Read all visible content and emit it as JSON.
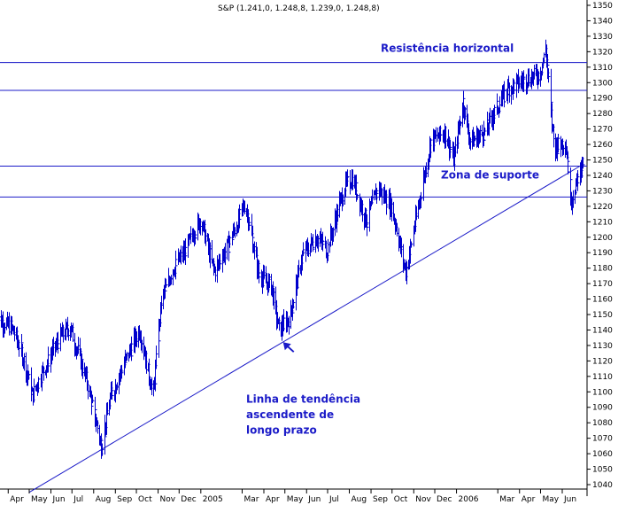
{
  "chart_data": {
    "type": "bar",
    "subtype": "ohlc",
    "title": "S&P (1.241,0, 1.248,8, 1.239,0, 1.248,8)",
    "ylim": [
      1035,
      1355
    ],
    "y_ticks": [
      1040,
      1050,
      1060,
      1070,
      1080,
      1090,
      1100,
      1110,
      1120,
      1130,
      1140,
      1150,
      1160,
      1170,
      1180,
      1190,
      1200,
      1210,
      1220,
      1230,
      1240,
      1250,
      1260,
      1270,
      1280,
      1290,
      1300,
      1310,
      1320,
      1330,
      1340,
      1350
    ],
    "x_tick_labels": [
      "Apr",
      "May",
      "Jun",
      "Jul",
      "Aug",
      "Sep",
      "Oct",
      "Nov",
      "Dec",
      "2005",
      "Mar",
      "Apr",
      "May",
      "Jun",
      "Jul",
      "Aug",
      "Sep",
      "Oct",
      "Nov",
      "Dec",
      "2006",
      "Mar",
      "Apr",
      "May",
      "Jun"
    ],
    "x_ticks": [
      "2004-04",
      "2004-05",
      "2004-06",
      "2004-07",
      "2004-08",
      "2004-09",
      "2004-10",
      "2004-11",
      "2004-12",
      "2005-01",
      "2005-03",
      "2005-04",
      "2005-05",
      "2005-06",
      "2005-07",
      "2005-08",
      "2005-09",
      "2005-10",
      "2005-11",
      "2005-12",
      "2006-01",
      "2006-03",
      "2006-04",
      "2006-05",
      "2006-06"
    ],
    "grid": false,
    "colors": {
      "bars": "#0000cc",
      "lines": "#1b1bc8",
      "annotations": "#1b1bc8"
    },
    "horizontal_lines": [
      1313,
      1295,
      1246,
      1226
    ],
    "trendline": {
      "from": {
        "x": "2004-05-01",
        "y": 1035
      },
      "to": {
        "x": "2006-06-30",
        "y": 1247
      }
    },
    "annotations": [
      {
        "text": "Resistência horizontal",
        "y": 1320
      },
      {
        "text": "Zona de suporte",
        "y": 1238
      },
      {
        "text": "Linha de tendência",
        "y": 1093
      },
      {
        "text": "ascendente de",
        "y": 1083
      },
      {
        "text": "longo prazo",
        "y": 1073
      }
    ],
    "arrow": {
      "x": "2005-05-01",
      "y": 1131
    },
    "anchors": [
      {
        "x": "2004-03-15",
        "y": 1148
      },
      {
        "x": "2004-04-05",
        "y": 1142
      },
      {
        "x": "2004-04-20",
        "y": 1126
      },
      {
        "x": "2004-05-05",
        "y": 1098
      },
      {
        "x": "2004-05-25",
        "y": 1118
      },
      {
        "x": "2004-06-15",
        "y": 1136
      },
      {
        "x": "2004-06-28",
        "y": 1142
      },
      {
        "x": "2004-07-20",
        "y": 1110
      },
      {
        "x": "2004-08-12",
        "y": 1065
      },
      {
        "x": "2004-08-25",
        "y": 1098
      },
      {
        "x": "2004-09-15",
        "y": 1120
      },
      {
        "x": "2004-10-05",
        "y": 1140
      },
      {
        "x": "2004-10-25",
        "y": 1098
      },
      {
        "x": "2004-11-05",
        "y": 1158
      },
      {
        "x": "2004-11-20",
        "y": 1178
      },
      {
        "x": "2004-12-10",
        "y": 1192
      },
      {
        "x": "2004-12-31",
        "y": 1212
      },
      {
        "x": "2005-01-20",
        "y": 1178
      },
      {
        "x": "2005-02-10",
        "y": 1196
      },
      {
        "x": "2005-03-05",
        "y": 1222
      },
      {
        "x": "2005-03-25",
        "y": 1175
      },
      {
        "x": "2005-04-12",
        "y": 1168
      },
      {
        "x": "2005-04-22",
        "y": 1140
      },
      {
        "x": "2005-05-08",
        "y": 1148
      },
      {
        "x": "2005-05-25",
        "y": 1188
      },
      {
        "x": "2005-06-15",
        "y": 1200
      },
      {
        "x": "2005-06-30",
        "y": 1192
      },
      {
        "x": "2005-07-25",
        "y": 1233
      },
      {
        "x": "2005-08-05",
        "y": 1238
      },
      {
        "x": "2005-08-25",
        "y": 1210
      },
      {
        "x": "2005-09-10",
        "y": 1232
      },
      {
        "x": "2005-09-30",
        "y": 1220
      },
      {
        "x": "2005-10-20",
        "y": 1178
      },
      {
        "x": "2005-11-05",
        "y": 1215
      },
      {
        "x": "2005-11-25",
        "y": 1262
      },
      {
        "x": "2005-12-15",
        "y": 1268
      },
      {
        "x": "2005-12-28",
        "y": 1250
      },
      {
        "x": "2006-01-10",
        "y": 1288
      },
      {
        "x": "2006-01-20",
        "y": 1262
      },
      {
        "x": "2006-02-10",
        "y": 1268
      },
      {
        "x": "2006-02-25",
        "y": 1282
      },
      {
        "x": "2006-03-15",
        "y": 1296
      },
      {
        "x": "2006-03-30",
        "y": 1300
      },
      {
        "x": "2006-04-15",
        "y": 1303
      },
      {
        "x": "2006-04-30",
        "y": 1306
      },
      {
        "x": "2006-05-08",
        "y": 1322
      },
      {
        "x": "2006-05-20",
        "y": 1258
      },
      {
        "x": "2006-06-05",
        "y": 1262
      },
      {
        "x": "2006-06-14",
        "y": 1225
      },
      {
        "x": "2006-06-30",
        "y": 1249
      }
    ]
  }
}
